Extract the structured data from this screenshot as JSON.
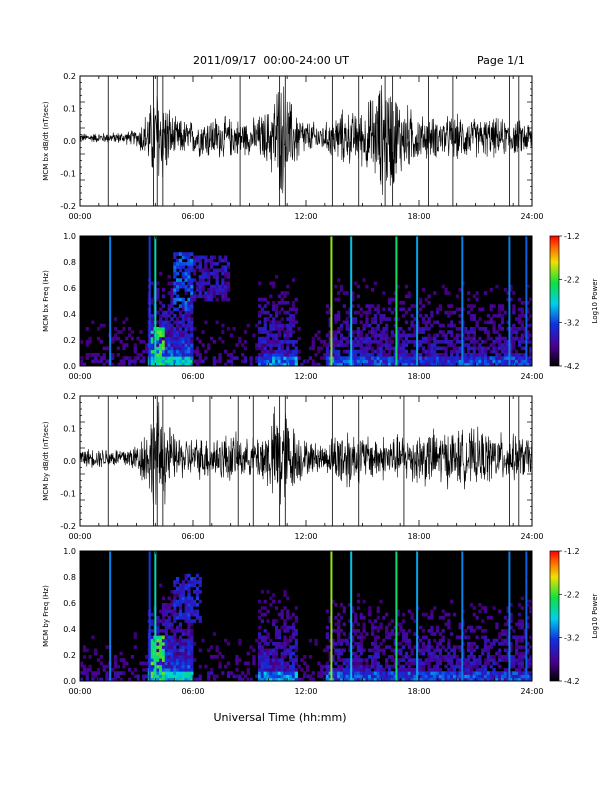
{
  "header": {
    "title": "2011/09/17  00:00-24:00 UT",
    "page": "Page 1/1"
  },
  "footer": {
    "xlabel": "Universal Time (hh:mm)"
  },
  "chart_data": [
    {
      "type": "line",
      "panel": "bx-waveform",
      "ylabel": "MCM bx dB/dt (nT/sec)",
      "xlim": [
        0,
        24
      ],
      "ylim": [
        -0.2,
        0.2
      ],
      "x_ticks": [
        "00:00",
        "06:00",
        "12:00",
        "18:00",
        "24:00"
      ],
      "y_ticks": [
        "-0.2",
        "-0.1",
        "0.0",
        "0.1",
        "0.2"
      ],
      "x_tick_values": [
        0,
        6,
        12,
        18,
        24
      ],
      "y_tick_values": [
        -0.2,
        -0.1,
        0.0,
        0.1,
        0.2
      ],
      "envelope": {
        "x": [
          0,
          1,
          2,
          3,
          3.8,
          4.1,
          4.5,
          5,
          6,
          7,
          8,
          9,
          10,
          10.5,
          10.8,
          11.2,
          12,
          13,
          13.5,
          14,
          14.5,
          15,
          16,
          16.5,
          17,
          18,
          19,
          20,
          21,
          22,
          23,
          24
        ],
        "amp": [
          0.015,
          0.018,
          0.02,
          0.028,
          0.13,
          0.2,
          0.15,
          0.07,
          0.06,
          0.08,
          0.07,
          0.06,
          0.1,
          0.2,
          0.2,
          0.13,
          0.06,
          0.05,
          0.08,
          0.1,
          0.09,
          0.1,
          0.2,
          0.2,
          0.14,
          0.08,
          0.07,
          0.08,
          0.07,
          0.07,
          0.06,
          0.06
        ]
      },
      "spikes": [
        1.5,
        3.9,
        4.1,
        4.4,
        8.5,
        10.6,
        10.9,
        13.4,
        14.8,
        16.2,
        16.6,
        18.5,
        19.8,
        22.8,
        23.3
      ],
      "color": "#000000"
    },
    {
      "type": "heatmap",
      "panel": "bx-spectrogram",
      "ylabel": "MCM bx Freq (Hz)",
      "xlim": [
        0,
        24
      ],
      "ylim": [
        0,
        1.0
      ],
      "x_ticks": [
        "00:00",
        "06:00",
        "12:00",
        "18:00",
        "24:00"
      ],
      "y_ticks": [
        "0.0",
        "0.2",
        "0.4",
        "0.6",
        "0.8",
        "1.0"
      ],
      "x_tick_values": [
        0,
        6,
        12,
        18,
        24
      ],
      "y_tick_values": [
        0,
        0.2,
        0.4,
        0.6,
        0.8,
        1.0
      ],
      "colorbar": {
        "label": "Log10 Power",
        "min": -4.2,
        "max": -1.2,
        "ticks": [
          "-1.2",
          "-2.2",
          "-3.2",
          "-4.2"
        ],
        "tick_values": [
          -1.2,
          -2.2,
          -3.2,
          -4.2
        ]
      },
      "vertical_lines": [
        {
          "t": 1.6,
          "level": -3.0
        },
        {
          "t": 3.7,
          "level": -3.2
        },
        {
          "t": 4.0,
          "level": -2.6
        },
        {
          "t": 13.35,
          "level": -2.0
        },
        {
          "t": 14.4,
          "level": -2.8
        },
        {
          "t": 16.8,
          "level": -2.4
        },
        {
          "t": 17.9,
          "level": -2.9
        },
        {
          "t": 20.3,
          "level": -3.0
        },
        {
          "t": 22.8,
          "level": -3.0
        },
        {
          "t": 23.7,
          "level": -3.1
        }
      ],
      "blobs": [
        {
          "t0": 5.0,
          "t1": 6.0,
          "f0": 0.42,
          "f1": 0.88,
          "level": -3.2
        },
        {
          "t0": 6.0,
          "t1": 8.0,
          "f0": 0.5,
          "f1": 0.85,
          "level": -3.6
        },
        {
          "t0": 3.7,
          "t1": 4.5,
          "f0": 0.0,
          "f1": 0.3,
          "level": -2.3
        }
      ]
    },
    {
      "type": "line",
      "panel": "by-waveform",
      "ylabel": "MCM by dB/dt (nT/sec)",
      "xlim": [
        0,
        24
      ],
      "ylim": [
        -0.2,
        0.2
      ],
      "x_ticks": [
        "00:00",
        "06:00",
        "12:00",
        "18:00",
        "24:00"
      ],
      "y_ticks": [
        "-0.2",
        "-0.1",
        "0.0",
        "0.1",
        "0.2"
      ],
      "x_tick_values": [
        0,
        6,
        12,
        18,
        24
      ],
      "y_tick_values": [
        -0.2,
        -0.1,
        0.0,
        0.1,
        0.2
      ],
      "envelope": {
        "x": [
          0,
          1,
          2,
          3,
          3.8,
          4.1,
          4.5,
          5,
          6,
          7,
          8,
          9,
          10,
          10.5,
          10.8,
          11.2,
          12,
          13,
          13.5,
          14,
          14.5,
          15,
          16,
          16.5,
          17,
          18,
          19,
          20,
          21,
          22,
          23,
          24
        ],
        "amp": [
          0.03,
          0.035,
          0.035,
          0.05,
          0.15,
          0.2,
          0.16,
          0.08,
          0.07,
          0.08,
          0.09,
          0.06,
          0.12,
          0.2,
          0.2,
          0.13,
          0.06,
          0.05,
          0.08,
          0.13,
          0.1,
          0.08,
          0.08,
          0.08,
          0.08,
          0.1,
          0.1,
          0.1,
          0.1,
          0.09,
          0.08,
          0.07
        ]
      },
      "spikes": [
        1.5,
        3.9,
        4.1,
        4.4,
        6.9,
        8.4,
        9.2,
        10.6,
        10.9,
        13.4,
        14.8,
        17.2,
        22.8,
        23.3
      ],
      "color": "#000000"
    },
    {
      "type": "heatmap",
      "panel": "by-spectrogram",
      "ylabel": "MCM by Freq (Hz)",
      "xlim": [
        0,
        24
      ],
      "ylim": [
        0,
        1.0
      ],
      "x_ticks": [
        "00:00",
        "06:00",
        "12:00",
        "18:00",
        "24:00"
      ],
      "y_ticks": [
        "0.0",
        "0.2",
        "0.4",
        "0.6",
        "0.8",
        "1.0"
      ],
      "x_tick_values": [
        0,
        6,
        12,
        18,
        24
      ],
      "y_tick_values": [
        0,
        0.2,
        0.4,
        0.6,
        0.8,
        1.0
      ],
      "colorbar": {
        "label": "Log10 Power",
        "min": -4.2,
        "max": -1.2,
        "ticks": [
          "-1.2",
          "-2.2",
          "-3.2",
          "-4.2"
        ],
        "tick_values": [
          -1.2,
          -2.2,
          -3.2,
          -4.2
        ]
      },
      "vertical_lines": [
        {
          "t": 1.6,
          "level": -3.0
        },
        {
          "t": 3.7,
          "level": -3.2
        },
        {
          "t": 4.0,
          "level": -2.6
        },
        {
          "t": 13.35,
          "level": -2.0
        },
        {
          "t": 14.4,
          "level": -2.8
        },
        {
          "t": 16.8,
          "level": -2.4
        },
        {
          "t": 17.9,
          "level": -2.9
        },
        {
          "t": 20.3,
          "level": -3.0
        },
        {
          "t": 22.8,
          "level": -3.0
        },
        {
          "t": 23.7,
          "level": -3.1
        }
      ],
      "blobs": [
        {
          "t0": 5.0,
          "t1": 6.5,
          "f0": 0.45,
          "f1": 0.82,
          "level": -3.4
        },
        {
          "t0": 3.7,
          "t1": 4.5,
          "f0": 0.0,
          "f1": 0.35,
          "level": -2.3
        }
      ]
    }
  ]
}
